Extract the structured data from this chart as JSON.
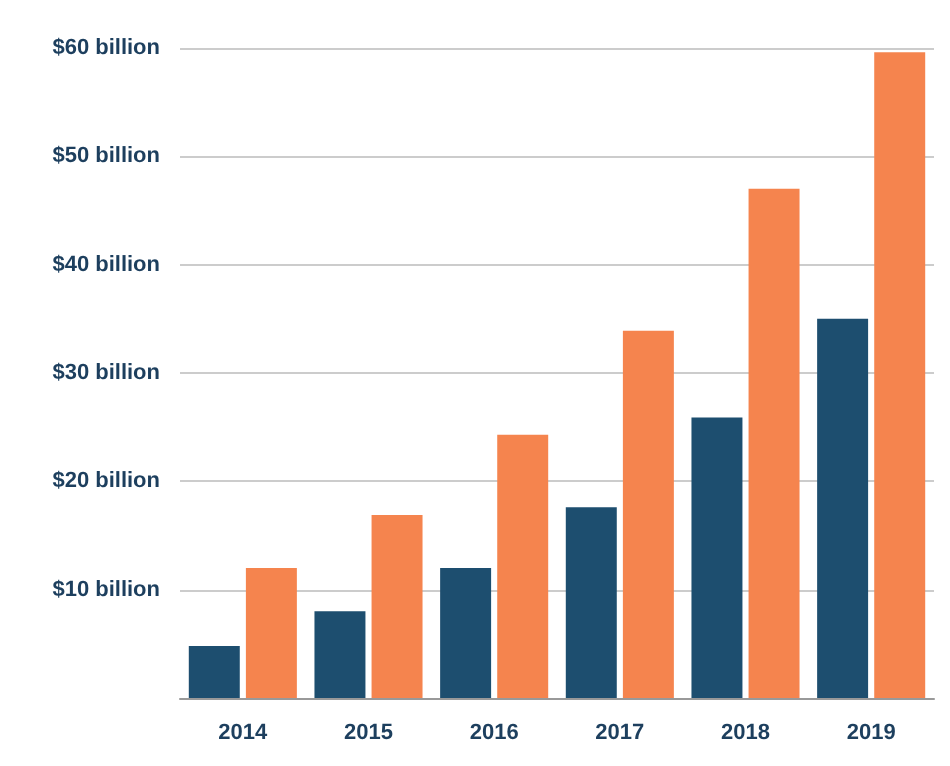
{
  "chart_data": {
    "type": "bar",
    "categories": [
      "2014",
      "2015",
      "2016",
      "2017",
      "2018",
      "2019"
    ],
    "series": [
      {
        "color": "#1d4e6f",
        "values": [
          4.8,
          8.0,
          12.0,
          17.6,
          25.9,
          35.0
        ]
      },
      {
        "color": "#f5844e",
        "values": [
          12.0,
          16.9,
          24.3,
          33.9,
          47.0,
          59.6
        ]
      }
    ],
    "ylim": [
      0,
      60
    ],
    "yticks": [
      {
        "value": 0,
        "label": null
      },
      {
        "value": 10,
        "label": "$10 billion"
      },
      {
        "value": 20,
        "label": "$20 billion"
      },
      {
        "value": 30,
        "label": "$30 billion"
      },
      {
        "value": 40,
        "label": "$40 billion"
      },
      {
        "value": 50,
        "label": "$50 billion"
      },
      {
        "value": 60,
        "label": "$60 billion"
      }
    ],
    "grid": "y"
  }
}
